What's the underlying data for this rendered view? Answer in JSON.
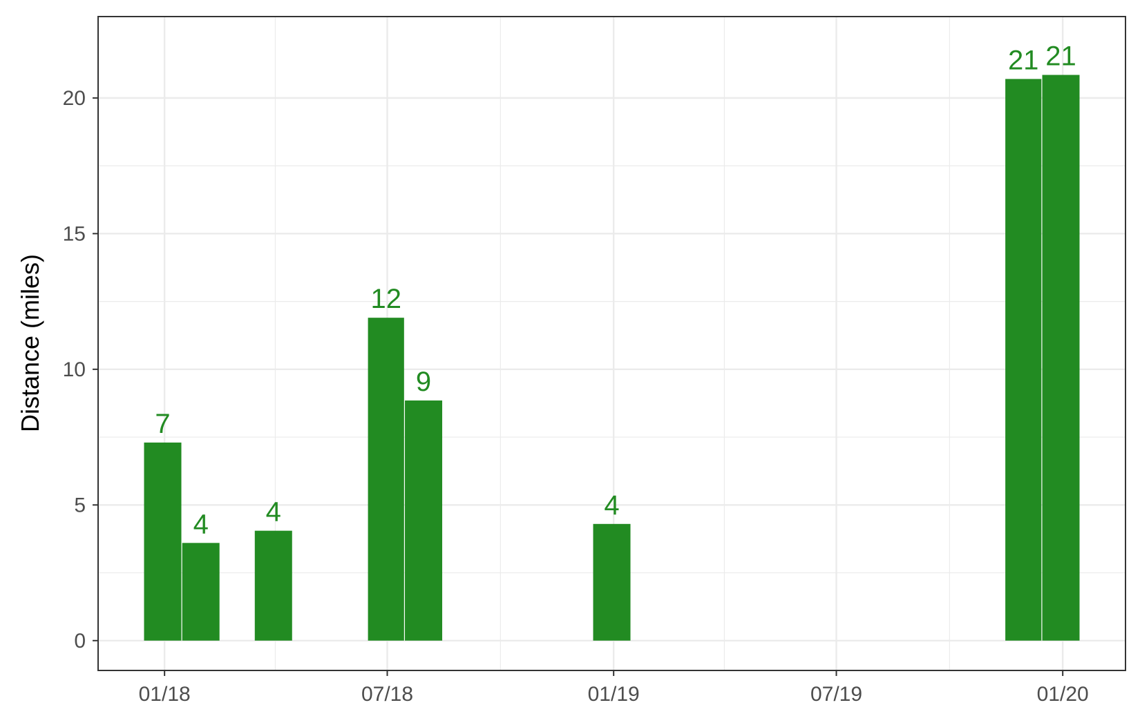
{
  "chart_data": {
    "type": "bar",
    "title": "",
    "xlabel": "",
    "ylabel": "Distance (miles)",
    "x_axis": {
      "type": "date",
      "range": [
        "2017-11-08",
        "2020-02-21"
      ],
      "tick_dates": [
        "2018-01-01",
        "2018-07-01",
        "2019-01-01",
        "2019-07-01",
        "2020-01-01"
      ],
      "tick_labels": [
        "01/18",
        "07/18",
        "01/19",
        "07/19",
        "01/20"
      ],
      "minor_grid_dates": [
        "2018-04-01",
        "2018-10-01",
        "2019-04-01",
        "2019-10-01"
      ]
    },
    "ylim": [
      -1.1,
      23.0
    ],
    "y_ticks": [
      0,
      5,
      10,
      15,
      20
    ],
    "grid": true,
    "bar_color": "#228B22",
    "label_color": "#228B22",
    "bars": [
      {
        "start": "2017-12-15",
        "end": "2018-01-15",
        "value": 7.3,
        "label": "7"
      },
      {
        "start": "2018-01-15",
        "end": "2018-02-15",
        "value": 3.6,
        "label": "4"
      },
      {
        "start": "2018-03-15",
        "end": "2018-04-15",
        "value": 4.05,
        "label": "4"
      },
      {
        "start": "2018-06-15",
        "end": "2018-07-15",
        "value": 11.9,
        "label": "12"
      },
      {
        "start": "2018-07-15",
        "end": "2018-08-15",
        "value": 8.85,
        "label": "9"
      },
      {
        "start": "2018-12-15",
        "end": "2019-01-15",
        "value": 4.3,
        "label": "4"
      },
      {
        "start": "2019-11-15",
        "end": "2019-12-15",
        "value": 20.7,
        "label": "21"
      },
      {
        "start": "2019-12-15",
        "end": "2020-01-15",
        "value": 20.85,
        "label": "21"
      }
    ]
  }
}
